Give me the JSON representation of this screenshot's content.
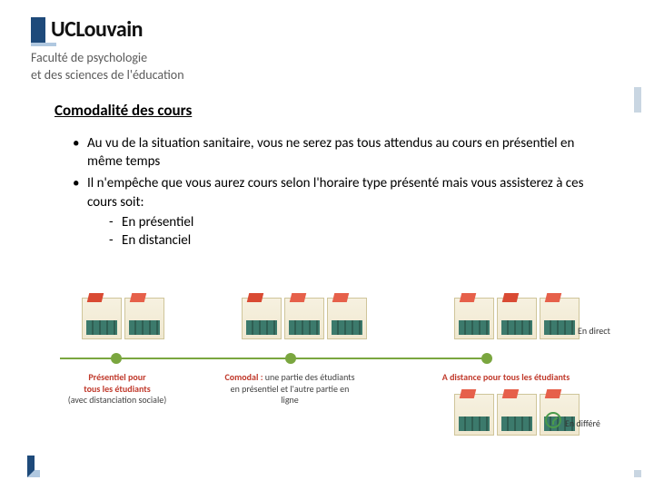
{
  "logo": {
    "brand_color": "#1e4a7a",
    "accent_color": "#b0c8e0",
    "text": "UCLouvain",
    "faculty_line1": "Faculté de psychologie",
    "faculty_line2": "et des sciences de l'éducation"
  },
  "section_title": "Comodalité des cours",
  "bullets": {
    "b1": "Au vu de la situation sanitaire, vous ne serez pas tous attendus au cours en présentiel en même temps",
    "b2": "Il n'empêche que vous aurez cours selon l'horaire type présenté mais vous assisterez à ces cours soit:",
    "s1": "En présentiel",
    "s2": "En distanciel"
  },
  "infographic": {
    "type": "infographic",
    "timeline_color": "#7aa63f",
    "node_color": "#7aa63f",
    "illustration_bg": "#f0e8d0",
    "illustration_accent": "#e6604a",
    "illustration_desk": "#3c7a6c",
    "clock_color": "#4a9a4a",
    "labels": {
      "node1_title": "Présentiel pour",
      "node1_line2": "tous les étudiants",
      "node1_line3": "(avec distanciation sociale)",
      "node2_title": "Comodal :",
      "node2_line2": " une partie des étudiants en présentiel et l'autre partie en ligne",
      "node3_title": "A distance pour tous les étudiants",
      "tag_direct": "En direct",
      "tag_differe": "En différé"
    }
  }
}
